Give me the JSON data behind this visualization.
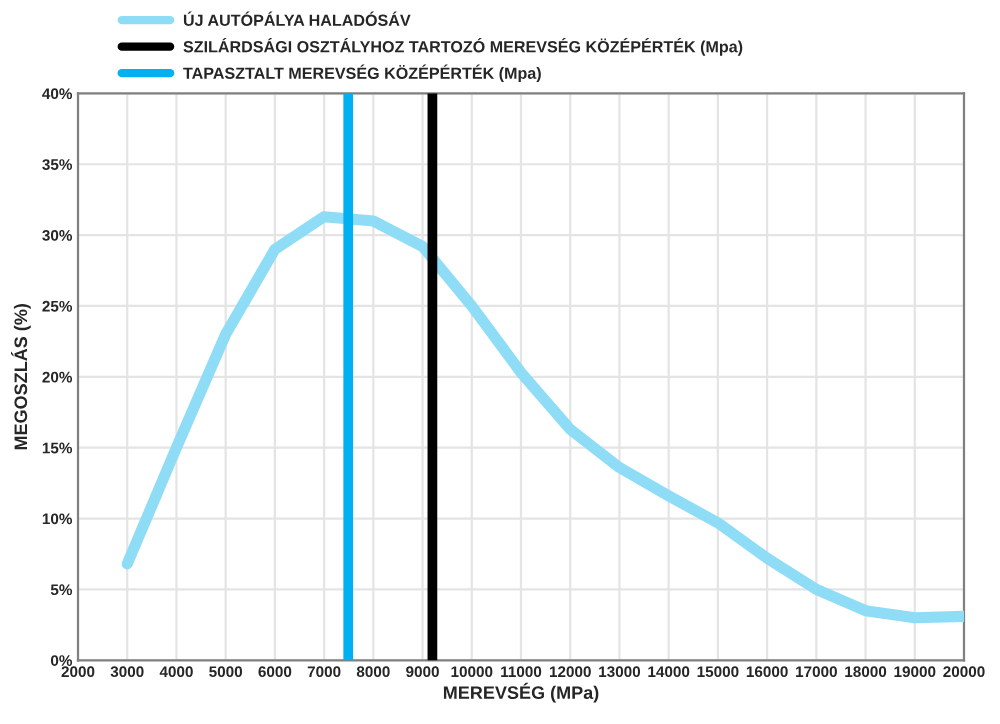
{
  "chart_data": {
    "type": "line",
    "xlabel": "MEREVSÉG (MPa)",
    "ylabel": "MEGOSZLÁS (%)",
    "x": [
      3000,
      4000,
      5000,
      6000,
      7000,
      8000,
      9000,
      10000,
      11000,
      12000,
      13000,
      14000,
      15000,
      16000,
      17000,
      18000,
      19000,
      20000
    ],
    "series": [
      {
        "name": "ÚJ AUTÓPÁLYA HALADÓSÁV",
        "color": "#8fdcf7",
        "values": [
          6.8,
          15,
          23,
          29,
          31.3,
          31,
          29.2,
          25,
          20.3,
          16.3,
          13.6,
          11.6,
          9.7,
          7.2,
          5,
          3.5,
          3,
          3.1
        ]
      }
    ],
    "ref_lines": [
      {
        "axis": "x",
        "value": 9200,
        "label": "SZILÁRDSÁGI OSZTÁLYHOZ TARTOZÓ MEREVSÉG KÖZÉPÉRTÉK (Mpa)",
        "color": "#000000"
      },
      {
        "axis": "x",
        "value": 7490,
        "label": "TAPASZTALT MEREVSÉG KÖZÉPÉRTÉK (Mpa)",
        "color": "#00b0f0"
      }
    ],
    "xlim": [
      2000,
      20000
    ],
    "xticks": [
      2000,
      3000,
      4000,
      5000,
      6000,
      7000,
      8000,
      9000,
      10000,
      11000,
      12000,
      13000,
      14000,
      15000,
      16000,
      17000,
      18000,
      19000,
      20000
    ],
    "ylim": [
      0,
      40
    ],
    "yticks": [
      {
        "value": 0,
        "label": "0%"
      },
      {
        "value": 5,
        "label": "5%"
      },
      {
        "value": 10,
        "label": "10%"
      },
      {
        "value": 15,
        "label": "15%"
      },
      {
        "value": 20,
        "label": "20%"
      },
      {
        "value": 25,
        "label": "25%"
      },
      {
        "value": 30,
        "label": "30%"
      },
      {
        "value": 35,
        "label": "35%"
      },
      {
        "value": 40,
        "label": "40%"
      }
    ],
    "grid": true,
    "legend": "top",
    "marker": "none",
    "line_style": "solid"
  }
}
